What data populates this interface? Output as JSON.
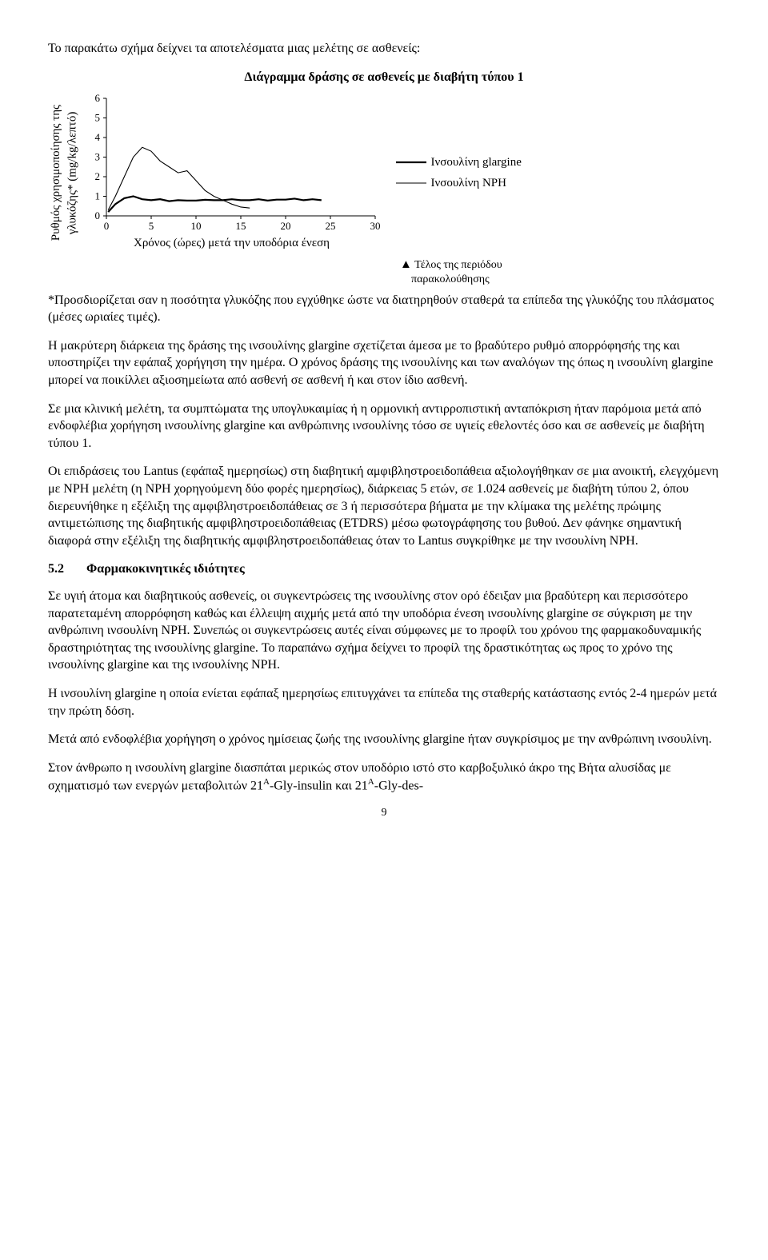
{
  "intro": "Το παρακάτω σχήμα δείχνει τα αποτελέσματα μιας μελέτης σε ασθενείς:",
  "chart": {
    "title": "Διάγραμμα δράσης σε ασθενείς με διαβήτη τύπου 1",
    "ylabel": "Ρυθμός χρησιμοποίησης της\nγλυκόζης* (mg/kg/λεπτό)",
    "xlabel": "Χρόνος (ώρες) μετά την υποδόρια ένεση",
    "xlim": [
      0,
      30
    ],
    "ylim": [
      0,
      6
    ],
    "xticks": [
      0,
      5,
      10,
      15,
      20,
      25,
      30
    ],
    "yticks": [
      0,
      1,
      2,
      3,
      4,
      5,
      6
    ],
    "axis_color": "#000000",
    "background": "#ffffff",
    "legend": [
      {
        "label": "Ινσουλίνη glargine",
        "color": "#000000",
        "stroke_width": 2.2
      },
      {
        "label": "Ινσουλίνη NPH",
        "color": "#000000",
        "stroke_width": 1.1
      }
    ],
    "series": [
      {
        "name": "glargine",
        "color": "#000000",
        "stroke_width": 2.2,
        "points": [
          [
            0.2,
            0.2
          ],
          [
            1,
            0.6
          ],
          [
            2,
            0.9
          ],
          [
            3,
            1.0
          ],
          [
            4,
            0.85
          ],
          [
            5,
            0.8
          ],
          [
            6,
            0.85
          ],
          [
            7,
            0.75
          ],
          [
            8,
            0.8
          ],
          [
            9,
            0.78
          ],
          [
            10,
            0.78
          ],
          [
            11,
            0.82
          ],
          [
            12,
            0.8
          ],
          [
            13,
            0.8
          ],
          [
            14,
            0.85
          ],
          [
            15,
            0.8
          ],
          [
            16,
            0.8
          ],
          [
            17,
            0.85
          ],
          [
            18,
            0.78
          ],
          [
            19,
            0.83
          ],
          [
            20,
            0.83
          ],
          [
            21,
            0.88
          ],
          [
            22,
            0.8
          ],
          [
            23,
            0.85
          ],
          [
            24,
            0.8
          ]
        ]
      },
      {
        "name": "nph",
        "color": "#000000",
        "stroke_width": 1.1,
        "points": [
          [
            0.2,
            0.3
          ],
          [
            1,
            1.0
          ],
          [
            2,
            2.0
          ],
          [
            3,
            3.0
          ],
          [
            4,
            3.5
          ],
          [
            5,
            3.3
          ],
          [
            6,
            2.8
          ],
          [
            7,
            2.5
          ],
          [
            8,
            2.2
          ],
          [
            9,
            2.3
          ],
          [
            10,
            1.8
          ],
          [
            11,
            1.3
          ],
          [
            12,
            1.0
          ],
          [
            13,
            0.8
          ],
          [
            14,
            0.6
          ],
          [
            15,
            0.45
          ],
          [
            16,
            0.4
          ]
        ]
      }
    ],
    "end_note": "Τέλος της περιόδου\nπαρακολούθησης"
  },
  "asterisk_note": "*Προσδιορίζεται σαν η ποσότητα γλυκόζης που εγχύθηκε ώστε να διατηρηθούν σταθερά τα επίπεδα της γλυκόζης του πλάσματος (μέσες ωριαίες τιμές).",
  "p1": "Η μακρύτερη διάρκεια της δράσης της ινσουλίνης glargine σχετίζεται άμεσα με το βραδύτερο ρυθμό απορρόφησής της και υποστηρίζει την εφάπαξ χορήγηση την ημέρα. Ο χρόνος δράσης της ινσουλίνης και των αναλόγων της όπως η ινσουλίνη glargine μπορεί να ποικίλλει αξιοσημείωτα από ασθενή σε ασθενή ή και στον ίδιο ασθενή.",
  "p2": "Σε μια κλινική μελέτη, τα συμπτώματα της υπογλυκαιμίας ή η ορμονική αντιρροπιστική ανταπόκριση ήταν παρόμοια μετά από ενδοφλέβια χορήγηση ινσουλίνης glargine και ανθρώπινης ινσουλίνης τόσο σε υγιείς εθελοντές όσο και σε ασθενείς με διαβήτη τύπου 1.",
  "p3": "Οι επιδράσεις του Lantus (εφάπαξ ημερησίως) στη διαβητική αμφιβληστροειδοπάθεια αξιολογήθηκαν σε μια ανοικτή, ελεγχόμενη με NPH μελέτη (η NPH χορηγούμενη δύο φορές ημερησίως), διάρκειας 5 ετών, σε 1.024 ασθενείς με διαβήτη τύπου 2, όπου διερευνήθηκε η εξέλιξη της αμφιβληστροειδοπάθειας σε 3 ή περισσότερα βήματα με την κλίμακα της μελέτης πρώιμης αντιμετώπισης της διαβητικής αμφιβληστροειδοπάθειας (ETDRS) μέσω φωτογράφησης του βυθού. Δεν φάνηκε σημαντική διαφορά στην εξέλιξη της διαβητικής αμφιβληστροειδοπάθειας όταν το Lantus συγκρίθηκε με την ινσουλίνη NPH.",
  "section": {
    "num": "5.2",
    "title": "Φαρμακοκινητικές ιδιότητες"
  },
  "p4": "Σε υγιή άτομα και διαβητικούς ασθενείς, οι συγκεντρώσεις της ινσουλίνης στον ορό έδειξαν μια βραδύτερη και περισσότερο παρατεταμένη απορρόφηση καθώς και έλλειψη αιχμής μετά από την υποδόρια ένεση ινσουλίνης glargine σε σύγκριση με την ανθρώπινη ινσουλίνη NPH. Συνεπώς οι συγκεντρώσεις αυτές είναι σύμφωνες με το προφίλ του χρόνου της φαρμακοδυναμικής δραστηριότητας της ινσουλίνης glargine. Το παραπάνω σχήμα δείχνει το προφίλ της δραστικότητας ως προς το χρόνο της ινσουλίνης glargine και της ινσουλίνης NPH.",
  "p5": "Η ινσουλίνη glargine η οποία ενίεται εφάπαξ ημερησίως επιτυγχάνει τα επίπεδα της σταθερής κατάστασης εντός 2-4 ημερών μετά την πρώτη δόση.",
  "p6": "Μετά από ενδοφλέβια χορήγηση ο χρόνος ημίσειας ζωής της ινσουλίνης glargine ήταν συγκρίσιμος με την ανθρώπινη ινσουλίνη.",
  "p7_pre": "Στον άνθρωπο η ινσουλίνη glargine διασπάται μερικώς στον υποδόριο ιστό στο καρβοξυλικό άκρο της Βήτα αλυσίδας με σχηματισμό των ενεργών μεταβολιτών 21",
  "p7_sup1": "A",
  "p7_mid": "-Gly-insulin και 21",
  "p7_sup2": "A",
  "p7_post": "-Gly-des-",
  "page_number": "9"
}
